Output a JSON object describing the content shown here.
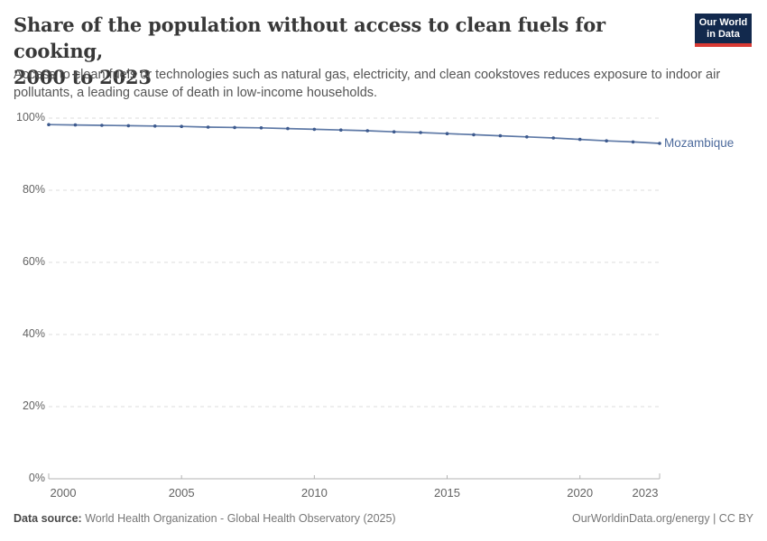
{
  "header": {
    "title_lines": [
      "Share of the population without access to clean fuels for cooking,",
      "2000 to 2023"
    ],
    "subtitle": "Access to clean fuels or technologies such as natural gas, electricity, and clean cookstoves reduces exposure to indoor air pollutants, a leading cause of death in low-income households."
  },
  "logo": {
    "line1": "Our World",
    "line2": "in Data"
  },
  "chart_data": {
    "type": "line",
    "title": "Share of the population without access to clean fuels for cooking, 2000 to 2023",
    "x": [
      2000,
      2001,
      2002,
      2003,
      2004,
      2005,
      2006,
      2007,
      2008,
      2009,
      2010,
      2011,
      2012,
      2013,
      2014,
      2015,
      2016,
      2017,
      2018,
      2019,
      2020,
      2021,
      2022,
      2023
    ],
    "series": [
      {
        "name": "Mozambique",
        "values": [
          98.2,
          98.1,
          98.0,
          97.9,
          97.8,
          97.7,
          97.5,
          97.4,
          97.3,
          97.1,
          96.9,
          96.7,
          96.5,
          96.2,
          96.0,
          95.7,
          95.4,
          95.1,
          94.8,
          94.5,
          94.1,
          93.7,
          93.4,
          93.0
        ]
      }
    ],
    "xlim": [
      2000,
      2023
    ],
    "ylim": [
      0,
      100
    ],
    "xticks": [
      2000,
      2005,
      2010,
      2015,
      2020,
      2023
    ],
    "yticks": [
      {
        "value": 0,
        "label": "0%"
      },
      {
        "value": 20,
        "label": "20%"
      },
      {
        "value": 40,
        "label": "40%"
      },
      {
        "value": 60,
        "label": "60%"
      },
      {
        "value": 80,
        "label": "80%"
      },
      {
        "value": 100,
        "label": "100%"
      }
    ],
    "grid": "horizontal-dashed",
    "legend": "end-of-line-label"
  },
  "footer": {
    "source_label": "Data source:",
    "source": "World Health Organization - Global Health Observatory (2025)",
    "attribution": "OurWorldinData.org/energy | CC BY"
  },
  "colors": {
    "line": "#4C6A9C",
    "marker": "#3d5a8e",
    "entity_label": "#4C6A9C",
    "grid": "#dddddd",
    "axis": "#b3b3b3",
    "tick_text": "#636363",
    "logo_bg": "#12294d",
    "logo_red": "#d93a34"
  }
}
